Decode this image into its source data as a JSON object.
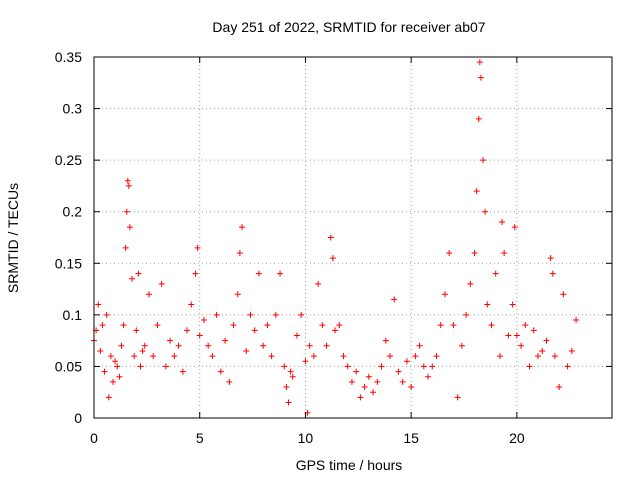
{
  "chart_data": {
    "type": "scatter",
    "title": "Day 251 of 2022, SRMTID for receiver ab07",
    "xlabel": "GPS time / hours",
    "ylabel": "SRMTID / TECUs",
    "xlim": [
      0,
      24.5
    ],
    "ylim": [
      0,
      0.35
    ],
    "xticks": [
      0,
      5,
      10,
      15,
      20
    ],
    "yticks": [
      0,
      0.05,
      0.1,
      0.15,
      0.2,
      0.25,
      0.3,
      0.35
    ],
    "xtick_labels": [
      "0",
      "5",
      "10",
      "15",
      "20"
    ],
    "ytick_labels": [
      "0",
      "0.05",
      "0.1",
      "0.15",
      "0.2",
      "0.25",
      "0.3",
      "0.35"
    ],
    "grid": true,
    "marker": "+",
    "color": "#ff0000",
    "series": [
      {
        "name": "SRMTID",
        "points": [
          [
            0.0,
            0.075
          ],
          [
            0.1,
            0.085
          ],
          [
            0.2,
            0.11
          ],
          [
            0.3,
            0.065
          ],
          [
            0.4,
            0.09
          ],
          [
            0.5,
            0.045
          ],
          [
            0.6,
            0.1
          ],
          [
            0.7,
            0.02
          ],
          [
            0.8,
            0.06
          ],
          [
            0.9,
            0.035
          ],
          [
            1.0,
            0.055
          ],
          [
            1.1,
            0.05
          ],
          [
            1.2,
            0.04
          ],
          [
            1.3,
            0.07
          ],
          [
            1.4,
            0.09
          ],
          [
            1.5,
            0.165
          ],
          [
            1.55,
            0.2
          ],
          [
            1.6,
            0.23
          ],
          [
            1.65,
            0.225
          ],
          [
            1.7,
            0.185
          ],
          [
            1.8,
            0.135
          ],
          [
            1.9,
            0.06
          ],
          [
            2.0,
            0.085
          ],
          [
            2.1,
            0.14
          ],
          [
            2.2,
            0.05
          ],
          [
            2.3,
            0.065
          ],
          [
            2.4,
            0.07
          ],
          [
            2.6,
            0.12
          ],
          [
            2.8,
            0.06
          ],
          [
            3.0,
            0.09
          ],
          [
            3.2,
            0.13
          ],
          [
            3.4,
            0.05
          ],
          [
            3.6,
            0.075
          ],
          [
            3.8,
            0.06
          ],
          [
            4.0,
            0.07
          ],
          [
            4.2,
            0.045
          ],
          [
            4.4,
            0.085
          ],
          [
            4.6,
            0.11
          ],
          [
            4.8,
            0.14
          ],
          [
            4.9,
            0.165
          ],
          [
            5.0,
            0.08
          ],
          [
            5.2,
            0.095
          ],
          [
            5.4,
            0.07
          ],
          [
            5.6,
            0.06
          ],
          [
            5.8,
            0.1
          ],
          [
            6.0,
            0.045
          ],
          [
            6.2,
            0.075
          ],
          [
            6.4,
            0.035
          ],
          [
            6.6,
            0.09
          ],
          [
            6.8,
            0.12
          ],
          [
            6.9,
            0.16
          ],
          [
            7.0,
            0.185
          ],
          [
            7.2,
            0.065
          ],
          [
            7.4,
            0.1
          ],
          [
            7.6,
            0.085
          ],
          [
            7.8,
            0.14
          ],
          [
            8.0,
            0.07
          ],
          [
            8.2,
            0.09
          ],
          [
            8.4,
            0.06
          ],
          [
            8.6,
            0.1
          ],
          [
            8.8,
            0.14
          ],
          [
            9.0,
            0.05
          ],
          [
            9.1,
            0.03
          ],
          [
            9.2,
            0.015
          ],
          [
            9.3,
            0.045
          ],
          [
            9.4,
            0.04
          ],
          [
            9.6,
            0.08
          ],
          [
            9.8,
            0.1
          ],
          [
            10.0,
            0.055
          ],
          [
            10.1,
            0.005
          ],
          [
            10.2,
            0.07
          ],
          [
            10.4,
            0.06
          ],
          [
            10.6,
            0.13
          ],
          [
            10.8,
            0.09
          ],
          [
            11.0,
            0.07
          ],
          [
            11.2,
            0.175
          ],
          [
            11.3,
            0.155
          ],
          [
            11.4,
            0.085
          ],
          [
            11.6,
            0.09
          ],
          [
            11.8,
            0.06
          ],
          [
            12.0,
            0.05
          ],
          [
            12.2,
            0.035
          ],
          [
            12.4,
            0.045
          ],
          [
            12.6,
            0.02
          ],
          [
            12.8,
            0.03
          ],
          [
            13.0,
            0.04
          ],
          [
            13.2,
            0.025
          ],
          [
            13.4,
            0.035
          ],
          [
            13.6,
            0.05
          ],
          [
            13.8,
            0.075
          ],
          [
            14.0,
            0.06
          ],
          [
            14.2,
            0.115
          ],
          [
            14.4,
            0.045
          ],
          [
            14.6,
            0.035
          ],
          [
            14.8,
            0.055
          ],
          [
            15.0,
            0.03
          ],
          [
            15.2,
            0.06
          ],
          [
            15.4,
            0.07
          ],
          [
            15.6,
            0.05
          ],
          [
            15.8,
            0.04
          ],
          [
            16.0,
            0.05
          ],
          [
            16.2,
            0.06
          ],
          [
            16.4,
            0.09
          ],
          [
            16.6,
            0.12
          ],
          [
            16.8,
            0.16
          ],
          [
            17.0,
            0.09
          ],
          [
            17.2,
            0.02
          ],
          [
            17.4,
            0.07
          ],
          [
            17.6,
            0.1
          ],
          [
            17.8,
            0.13
          ],
          [
            18.0,
            0.16
          ],
          [
            18.1,
            0.22
          ],
          [
            18.2,
            0.29
          ],
          [
            18.25,
            0.345
          ],
          [
            18.3,
            0.33
          ],
          [
            18.4,
            0.25
          ],
          [
            18.5,
            0.2
          ],
          [
            18.6,
            0.11
          ],
          [
            18.8,
            0.09
          ],
          [
            19.0,
            0.14
          ],
          [
            19.2,
            0.06
          ],
          [
            19.3,
            0.19
          ],
          [
            19.4,
            0.16
          ],
          [
            19.6,
            0.08
          ],
          [
            19.8,
            0.11
          ],
          [
            19.9,
            0.185
          ],
          [
            20.0,
            0.08
          ],
          [
            20.2,
            0.07
          ],
          [
            20.4,
            0.09
          ],
          [
            20.6,
            0.05
          ],
          [
            20.8,
            0.085
          ],
          [
            21.0,
            0.06
          ],
          [
            21.2,
            0.065
          ],
          [
            21.4,
            0.075
          ],
          [
            21.6,
            0.155
          ],
          [
            21.7,
            0.14
          ],
          [
            21.8,
            0.06
          ],
          [
            22.0,
            0.03
          ],
          [
            22.2,
            0.12
          ],
          [
            22.4,
            0.05
          ],
          [
            22.6,
            0.065
          ],
          [
            22.8,
            0.095
          ]
        ]
      }
    ]
  }
}
